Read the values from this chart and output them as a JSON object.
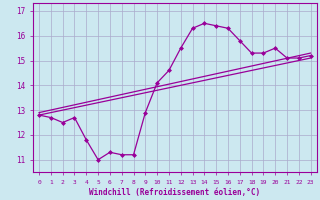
{
  "hours": [
    0,
    1,
    2,
    3,
    4,
    5,
    6,
    7,
    8,
    9,
    10,
    11,
    12,
    13,
    14,
    15,
    16,
    17,
    18,
    19,
    20,
    21,
    22,
    23
  ],
  "windchill": [
    12.8,
    12.7,
    12.5,
    12.7,
    11.8,
    11.0,
    11.3,
    11.2,
    11.2,
    12.9,
    14.1,
    14.6,
    15.5,
    16.3,
    16.5,
    16.4,
    16.3,
    15.8,
    15.3,
    15.3,
    15.5,
    15.1,
    15.1,
    15.2
  ],
  "straight_line1_x": [
    0,
    23
  ],
  "straight_line1_y": [
    12.8,
    15.1
  ],
  "straight_line2_x": [
    0,
    23
  ],
  "straight_line2_y": [
    12.9,
    15.3
  ],
  "line_color": "#990099",
  "bg_color": "#cce8f0",
  "grid_color": "#aaaacc",
  "xlabel": "Windchill (Refroidissement éolien,°C)",
  "ylim": [
    10.5,
    17.3
  ],
  "xlim": [
    -0.5,
    23.5
  ],
  "yticks": [
    11,
    12,
    13,
    14,
    15,
    16,
    17
  ],
  "xticks": [
    0,
    1,
    2,
    3,
    4,
    5,
    6,
    7,
    8,
    9,
    10,
    11,
    12,
    13,
    14,
    15,
    16,
    17,
    18,
    19,
    20,
    21,
    22,
    23
  ]
}
